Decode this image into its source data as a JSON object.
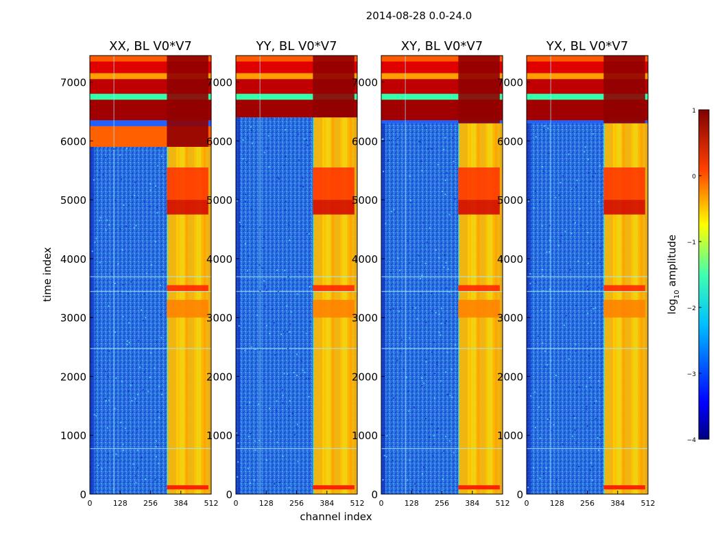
{
  "figure": {
    "suptitle": "2014-08-28 0.0-24.0"
  },
  "colors": {
    "background": "#000090",
    "noise": "#2a6fe0",
    "axis": "#000000"
  },
  "chart_data": {
    "type": "heatmap",
    "xlabel": "channel index",
    "ylabel": "time index",
    "xlim": [
      0,
      512
    ],
    "ylim": [
      0,
      7450
    ],
    "x_ticks": [
      "0",
      "128",
      "256",
      "384",
      "512"
    ],
    "y_ticks": [
      "0",
      "1000",
      "2000",
      "3000",
      "4000",
      "5000",
      "6000",
      "7000"
    ],
    "panels": [
      {
        "title": "XX, BL V0*V7"
      },
      {
        "title": "YY, BL V0*V7"
      },
      {
        "title": "XY, BL V0*V7"
      },
      {
        "title": "YX, BL V0*V7"
      }
    ],
    "colorbar": {
      "label": "log",
      "label_sub": "10",
      "label_rest": " amplitude",
      "range": [
        -4,
        1
      ],
      "ticks": [
        "1",
        "0",
        "−1",
        "−2",
        "−3",
        "−4"
      ]
    }
  }
}
